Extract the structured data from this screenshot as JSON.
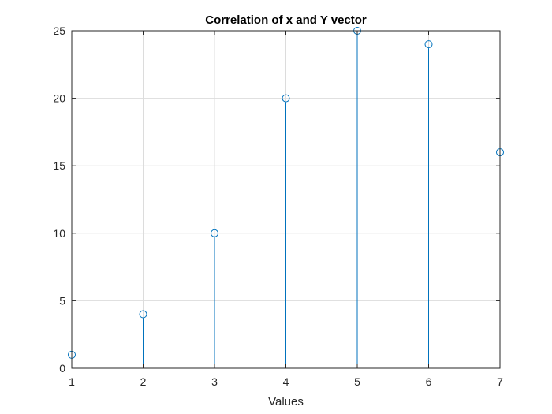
{
  "chart_data": {
    "type": "stem",
    "title": "Correlation of x and Y vector",
    "xlabel": "Values",
    "ylabel": "",
    "x": [
      1,
      2,
      3,
      4,
      5,
      6,
      7
    ],
    "y": [
      1,
      4,
      10,
      20,
      25,
      24,
      16
    ],
    "xlim": [
      1,
      7
    ],
    "ylim": [
      0,
      25
    ],
    "xticks": [
      1,
      2,
      3,
      4,
      5,
      6,
      7
    ],
    "yticks": [
      0,
      5,
      10,
      15,
      20,
      25
    ],
    "grid": true,
    "marker": "open-circle",
    "series_color": "#0072BD",
    "grid_color": "#dcdcdc",
    "axes_color": "#262626"
  }
}
